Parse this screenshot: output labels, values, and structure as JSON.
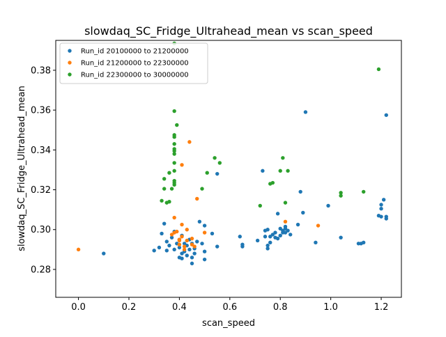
{
  "chart_data": {
    "type": "scatter",
    "title": "slowdaq_SC_Fridge_Ultrahead_mean vs scan_speed",
    "xlabel": "scan_speed",
    "ylabel": "slowdaq_SC_Fridge_Ultrahead_mean",
    "xlim": [
      -0.09,
      1.28
    ],
    "ylim": [
      0.266,
      0.395
    ],
    "xticks": [
      0.0,
      0.2,
      0.4,
      0.6,
      0.8,
      1.0,
      1.2
    ],
    "xtick_labels": [
      "0.0",
      "0.2",
      "0.4",
      "0.6",
      "0.8",
      "1.0",
      "1.2"
    ],
    "yticks": [
      0.28,
      0.3,
      0.32,
      0.34,
      0.36,
      0.38
    ],
    "ytick_labels": [
      "0.28",
      "0.30",
      "0.32",
      "0.34",
      "0.36",
      "0.38"
    ],
    "grid": false,
    "legend_position": "top-left",
    "series": [
      {
        "name": "Run_id 20100000 to 21200000",
        "color": "#1f77b4",
        "points": [
          [
            0.1,
            0.288
          ],
          [
            0.3,
            0.2895
          ],
          [
            0.32,
            0.291
          ],
          [
            0.33,
            0.298
          ],
          [
            0.34,
            0.303
          ],
          [
            0.35,
            0.2895
          ],
          [
            0.35,
            0.294
          ],
          [
            0.36,
            0.292
          ],
          [
            0.37,
            0.296
          ],
          [
            0.38,
            0.29
          ],
          [
            0.38,
            0.299
          ],
          [
            0.39,
            0.293
          ],
          [
            0.4,
            0.295
          ],
          [
            0.4,
            0.291
          ],
          [
            0.4,
            0.286
          ],
          [
            0.41,
            0.2855
          ],
          [
            0.41,
            0.288
          ],
          [
            0.41,
            0.297
          ],
          [
            0.42,
            0.289
          ],
          [
            0.42,
            0.293
          ],
          [
            0.43,
            0.287
          ],
          [
            0.43,
            0.292
          ],
          [
            0.44,
            0.29
          ],
          [
            0.44,
            0.295
          ],
          [
            0.45,
            0.283
          ],
          [
            0.45,
            0.286
          ],
          [
            0.45,
            0.293
          ],
          [
            0.46,
            0.288
          ],
          [
            0.46,
            0.2905
          ],
          [
            0.47,
            0.294
          ],
          [
            0.48,
            0.304
          ],
          [
            0.49,
            0.293
          ],
          [
            0.5,
            0.302
          ],
          [
            0.5,
            0.285
          ],
          [
            0.5,
            0.289
          ],
          [
            0.53,
            0.298
          ],
          [
            0.55,
            0.2915
          ],
          [
            0.55,
            0.328
          ],
          [
            0.64,
            0.2965
          ],
          [
            0.65,
            0.2915
          ],
          [
            0.65,
            0.2925
          ],
          [
            0.71,
            0.2945
          ],
          [
            0.73,
            0.3295
          ],
          [
            0.74,
            0.2965
          ],
          [
            0.74,
            0.2995
          ],
          [
            0.75,
            0.292
          ],
          [
            0.75,
            0.2905
          ],
          [
            0.75,
            0.3
          ],
          [
            0.76,
            0.2935
          ],
          [
            0.76,
            0.2965
          ],
          [
            0.77,
            0.2975
          ],
          [
            0.78,
            0.296
          ],
          [
            0.78,
            0.2985
          ],
          [
            0.79,
            0.308
          ],
          [
            0.79,
            0.2955
          ],
          [
            0.8,
            0.297
          ],
          [
            0.8,
            0.3005
          ],
          [
            0.81,
            0.2985
          ],
          [
            0.81,
            0.2995
          ],
          [
            0.82,
            0.2985
          ],
          [
            0.82,
            0.3005
          ],
          [
            0.82,
            0.3015
          ],
          [
            0.83,
            0.2995
          ],
          [
            0.84,
            0.2975
          ],
          [
            0.87,
            0.3025
          ],
          [
            0.88,
            0.319
          ],
          [
            0.89,
            0.3085
          ],
          [
            0.9,
            0.359
          ],
          [
            0.94,
            0.2935
          ],
          [
            0.99,
            0.312
          ],
          [
            1.04,
            0.296
          ],
          [
            1.11,
            0.293
          ],
          [
            1.12,
            0.293
          ],
          [
            1.13,
            0.2935
          ],
          [
            1.19,
            0.307
          ],
          [
            1.2,
            0.3065
          ],
          [
            1.2,
            0.3125
          ],
          [
            1.2,
            0.3105
          ],
          [
            1.21,
            0.315
          ],
          [
            1.22,
            0.3065
          ],
          [
            1.22,
            0.3055
          ],
          [
            1.22,
            0.3575
          ]
        ]
      },
      {
        "name": "Run_id 21200000 to 22300000",
        "color": "#ff7f0e",
        "points": [
          [
            0.0,
            0.29
          ],
          [
            0.37,
            0.2975
          ],
          [
            0.38,
            0.306
          ],
          [
            0.38,
            0.2985
          ],
          [
            0.39,
            0.299
          ],
          [
            0.4,
            0.295
          ],
          [
            0.4,
            0.2925
          ],
          [
            0.4,
            0.2945
          ],
          [
            0.41,
            0.2965
          ],
          [
            0.41,
            0.3025
          ],
          [
            0.41,
            0.3325
          ],
          [
            0.42,
            0.2915
          ],
          [
            0.42,
            0.29
          ],
          [
            0.43,
            0.2945
          ],
          [
            0.43,
            0.3
          ],
          [
            0.44,
            0.344
          ],
          [
            0.45,
            0.2955
          ],
          [
            0.45,
            0.2925
          ],
          [
            0.46,
            0.2915
          ],
          [
            0.47,
            0.3155
          ],
          [
            0.5,
            0.2985
          ],
          [
            0.82,
            0.304
          ],
          [
            0.95,
            0.302
          ]
        ]
      },
      {
        "name": "Run_id 22300000 to 30000000",
        "color": "#2ca02c",
        "points": [
          [
            0.33,
            0.3145
          ],
          [
            0.34,
            0.3255
          ],
          [
            0.34,
            0.3205
          ],
          [
            0.35,
            0.3135
          ],
          [
            0.36,
            0.3285
          ],
          [
            0.36,
            0.314
          ],
          [
            0.37,
            0.3205
          ],
          [
            0.38,
            0.3235
          ],
          [
            0.38,
            0.3245
          ],
          [
            0.38,
            0.3225
          ],
          [
            0.38,
            0.3295
          ],
          [
            0.38,
            0.3335
          ],
          [
            0.38,
            0.338
          ],
          [
            0.38,
            0.3395
          ],
          [
            0.38,
            0.3405
          ],
          [
            0.38,
            0.343
          ],
          [
            0.38,
            0.3465
          ],
          [
            0.38,
            0.3475
          ],
          [
            0.38,
            0.3595
          ],
          [
            0.39,
            0.3525
          ],
          [
            0.38,
            0.3935
          ],
          [
            0.49,
            0.3205
          ],
          [
            0.51,
            0.3285
          ],
          [
            0.54,
            0.336
          ],
          [
            0.56,
            0.3335
          ],
          [
            0.72,
            0.312
          ],
          [
            0.76,
            0.323
          ],
          [
            0.77,
            0.3235
          ],
          [
            0.8,
            0.3295
          ],
          [
            0.81,
            0.336
          ],
          [
            0.82,
            0.3135
          ],
          [
            0.83,
            0.3295
          ],
          [
            1.04,
            0.3185
          ],
          [
            1.04,
            0.317
          ],
          [
            1.13,
            0.319
          ],
          [
            1.19,
            0.3805
          ]
        ]
      }
    ]
  }
}
